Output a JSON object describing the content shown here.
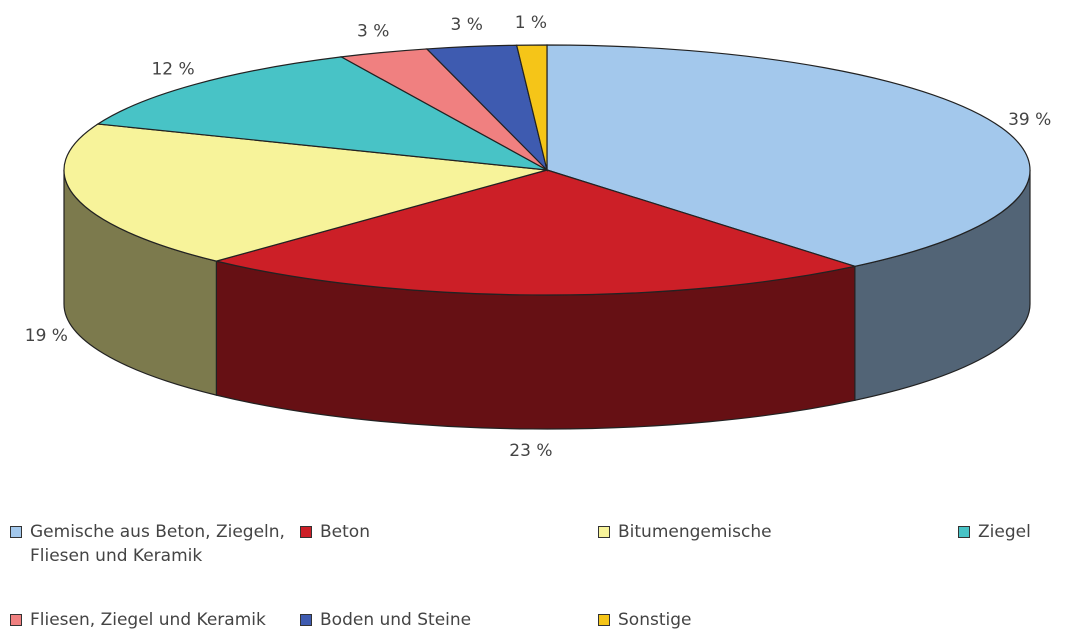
{
  "chart_data": {
    "type": "pie3d",
    "categories": [
      "Gemische aus Beton, Ziegeln, Fliesen und Keramik",
      "Beton",
      "Bitumengemische",
      "Ziegel",
      "Fliesen, Ziegel und Keramik",
      "Boden und Steine",
      "Sonstige"
    ],
    "values": [
      39,
      23,
      19,
      12,
      3,
      3,
      1
    ],
    "value_labels": [
      "39 %",
      "23 %",
      "19 %",
      "12 %",
      "3 %",
      "3 %",
      "1 %"
    ],
    "colors": [
      "#a3c8ec",
      "#cc1f27",
      "#f7f39a",
      "#48c3c6",
      "#f08080",
      "#3e5bb0",
      "#f5c518"
    ],
    "legend": "bottom"
  }
}
